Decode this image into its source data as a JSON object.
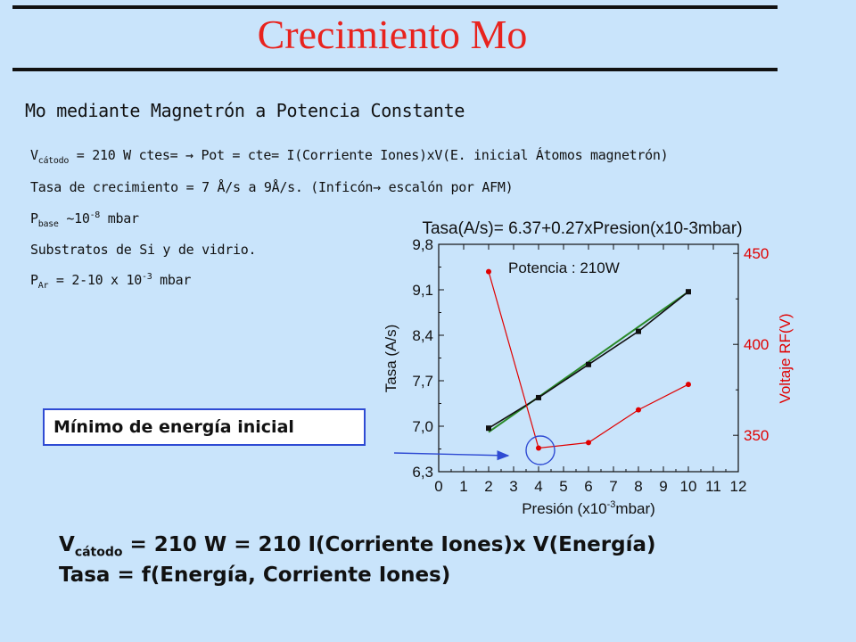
{
  "slide": {
    "title": "Crecimiento Mo",
    "subtitle": "Mo mediante Magnetrón a Potencia Constante",
    "bullets": {
      "l1_sym": "V",
      "l1_sub": "cátodo",
      "l1_text": " = 210 W ctes= → Pot = cte= I(Corriente Iones)xV(E. inicial Átomos magnetrón)",
      "l2_text": "Tasa de crecimiento = 7 Å/s a 9Å/s. (Inficón→ escalón por AFM)",
      "l3_sym": "P",
      "l3_sub": "base",
      "l3_approx": " ~10",
      "l3_exp": "-8",
      "l3_unit": " mbar",
      "l4_text": "Substratos de Si y de vidrio.",
      "l5_sym": "P",
      "l5_sub": "Ar",
      "l5_text": " = 2-10 x 10",
      "l5_exp": "-3",
      "l5_unit": " mbar"
    },
    "callout": "Mínimo de energía inicial",
    "bottom": {
      "b1_sym": "V",
      "b1_sub": "cátodo",
      "b1_text": " = 210 W = 210 I(Corriente Iones)x V(Energía)",
      "b2_text": "Tasa = f(Energía, Corriente Iones)"
    }
  },
  "chart_data": {
    "type": "line",
    "title": "Tasa(A/s)= 6.37+0.27xPresion(x10-3mbar)",
    "annotation": "Potencia : 210W",
    "xlabel": "Presión (x10",
    "xlabel_exp": "-3",
    "xlabel_tail": "mbar)",
    "ylabel": "Tasa (A/s)",
    "ylabel_right": "Voltaje RF(V)",
    "xlim": [
      0,
      12
    ],
    "ylim": [
      6.3,
      9.8
    ],
    "ylim_right": [
      330,
      455
    ],
    "x_ticks": [
      "0",
      "1",
      "2",
      "3",
      "4",
      "5",
      "6",
      "7",
      "8",
      "9",
      "10",
      "11",
      "12"
    ],
    "y_ticks": [
      "6,3",
      "7,0",
      "7,7",
      "8,4",
      "9,1",
      "9,8"
    ],
    "y_tick_values": [
      6.3,
      7.0,
      7.7,
      8.4,
      9.1,
      9.8
    ],
    "y_right_ticks": [
      "350",
      "400",
      "450"
    ],
    "y_right_tick_values": [
      350,
      400,
      450
    ],
    "grid": false,
    "colors": {
      "rate": "#111111",
      "fit": "#2a8a2a",
      "voltage": "#e00000"
    },
    "series": [
      {
        "name": "Tasa",
        "axis": "left",
        "x": [
          2,
          4,
          6,
          8,
          10
        ],
        "y": [
          6.97,
          7.44,
          7.95,
          8.46,
          9.07
        ]
      },
      {
        "name": "Voltaje",
        "axis": "right",
        "x": [
          2,
          4,
          6,
          8,
          10
        ],
        "y": [
          440,
          343,
          346,
          364,
          378
        ]
      }
    ],
    "fit": {
      "intercept": 6.37,
      "slope": 0.27,
      "x_range": [
        2,
        10
      ]
    }
  }
}
